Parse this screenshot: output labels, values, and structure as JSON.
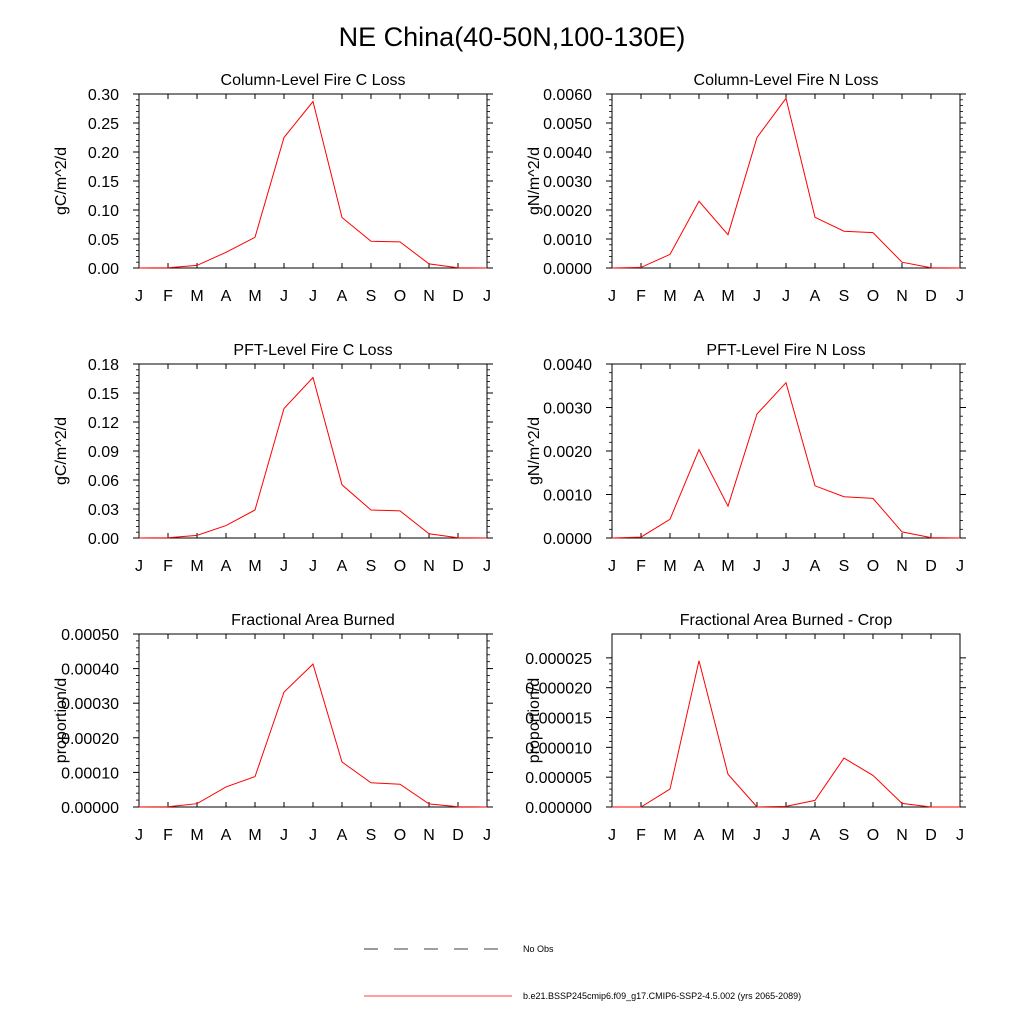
{
  "title": "NE China(40-50N,100-130E)",
  "colors": {
    "model": "#ff0000",
    "obs": "#000000",
    "axis": "#000000"
  },
  "month_labels": [
    "J",
    "F",
    "M",
    "A",
    "M",
    "J",
    "J",
    "A",
    "S",
    "O",
    "N",
    "D",
    "J"
  ],
  "legend": {
    "obs_label": "No Obs",
    "model_label": "b.e21.BSSP245cmip6.f09_g17.CMIP6-SSP2-4.5.002 (yrs 2065-2089)"
  },
  "chart_data": [
    {
      "type": "line",
      "title": "Column-Level Fire C Loss",
      "ylabel": "gC/m^2/d",
      "ylim": [
        0,
        0.3
      ],
      "yticks": [
        "0.00",
        "0.05",
        "0.10",
        "0.15",
        "0.20",
        "0.25",
        "0.30"
      ],
      "x": [
        "J",
        "F",
        "M",
        "A",
        "M",
        "J",
        "J",
        "A",
        "S",
        "O",
        "N",
        "D",
        "J"
      ],
      "series": [
        {
          "values": [
            0.0,
            0.0005,
            0.0045,
            0.027,
            0.053,
            0.225,
            0.287,
            0.087,
            0.046,
            0.045,
            0.007,
            0.0005,
            0.0
          ]
        }
      ]
    },
    {
      "type": "line",
      "title": "Column-Level Fire N Loss",
      "ylabel": "gN/m^2/d",
      "ylim": [
        0,
        0.006
      ],
      "yticks": [
        "0.0000",
        "0.0010",
        "0.0020",
        "0.0030",
        "0.0040",
        "0.0050",
        "0.0060"
      ],
      "x": [
        "J",
        "F",
        "M",
        "A",
        "M",
        "J",
        "J",
        "A",
        "S",
        "O",
        "N",
        "D",
        "J"
      ],
      "series": [
        {
          "values": [
            0.0,
            2e-05,
            0.00047,
            0.0023,
            0.00115,
            0.0045,
            0.00585,
            0.00175,
            0.00127,
            0.00122,
            0.0002,
            1e-05,
            0.0
          ]
        }
      ]
    },
    {
      "type": "line",
      "title": "PFT-Level Fire C Loss",
      "ylabel": "gC/m^2/d",
      "ylim": [
        0,
        0.18
      ],
      "yticks": [
        "0.00",
        "0.03",
        "0.06",
        "0.09",
        "0.12",
        "0.15",
        "0.18"
      ],
      "x": [
        "J",
        "F",
        "M",
        "A",
        "M",
        "J",
        "J",
        "A",
        "S",
        "O",
        "N",
        "D",
        "J"
      ],
      "series": [
        {
          "values": [
            0.0,
            0.0003,
            0.0027,
            0.0128,
            0.029,
            0.134,
            0.166,
            0.055,
            0.029,
            0.028,
            0.0043,
            0.0003,
            0.0
          ]
        }
      ]
    },
    {
      "type": "line",
      "title": "PFT-Level Fire N Loss",
      "ylabel": "gN/m^2/d",
      "ylim": [
        0,
        0.004
      ],
      "yticks": [
        "0.0000",
        "0.0010",
        "0.0020",
        "0.0030",
        "0.0040"
      ],
      "x": [
        "J",
        "F",
        "M",
        "A",
        "M",
        "J",
        "J",
        "A",
        "S",
        "O",
        "N",
        "D",
        "J"
      ],
      "series": [
        {
          "values": [
            0.0,
            2e-05,
            0.00043,
            0.00203,
            0.00073,
            0.00285,
            0.00357,
            0.0012,
            0.00095,
            0.00091,
            0.00014,
            1e-05,
            0.0
          ]
        }
      ]
    },
    {
      "type": "line",
      "title": "Fractional Area Burned",
      "ylabel": "proportion/d",
      "ylim": [
        0,
        0.0005
      ],
      "yticks": [
        "0.00000",
        "0.00010",
        "0.00020",
        "0.00030",
        "0.00040",
        "0.00050"
      ],
      "x": [
        "J",
        "F",
        "M",
        "A",
        "M",
        "J",
        "J",
        "A",
        "S",
        "O",
        "N",
        "D",
        "J"
      ],
      "series": [
        {
          "values": [
            0.0,
            5e-07,
            9.5e-06,
            5.8e-05,
            8.8e-05,
            0.000332,
            0.000413,
            0.00013,
            7e-05,
            6.6e-05,
            9e-06,
            5e-07,
            0.0
          ]
        }
      ]
    },
    {
      "type": "line",
      "title": "Fractional Area Burned - Crop",
      "ylabel": "proportion/d",
      "ylim": [
        0,
        2.9e-05
      ],
      "yticks": [
        "0.000000",
        "0.000005",
        "0.000010",
        "0.000015",
        "0.000020",
        "0.000025"
      ],
      "x": [
        "J",
        "F",
        "M",
        "A",
        "M",
        "J",
        "J",
        "A",
        "S",
        "O",
        "N",
        "D",
        "J"
      ],
      "series": [
        {
          "values": [
            0.0,
            0.0,
            3e-06,
            2.45e-05,
            5.5e-06,
            0.0,
            1e-07,
            1.1e-06,
            8.2e-06,
            5.3e-06,
            6e-07,
            0.0,
            0.0
          ]
        }
      ]
    }
  ]
}
